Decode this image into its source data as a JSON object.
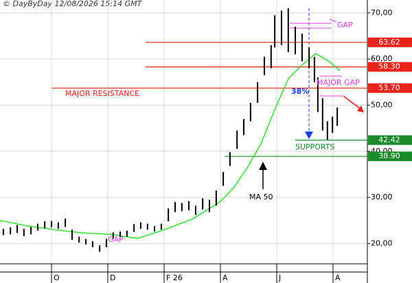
{
  "header": "© DayByDay 12/08/2026 15:14 GMT",
  "chart_data": {
    "type": "ohlc",
    "xlim": [
      -1.83,
      11.22
    ],
    "xticks": [
      {
        "value": 0,
        "label": "O"
      },
      {
        "value": 2,
        "label": "D"
      },
      {
        "value": 4,
        "label": "F 26"
      },
      {
        "value": 6,
        "label": "A"
      },
      {
        "value": 8,
        "label": "J"
      },
      {
        "value": 10,
        "label": "A"
      }
    ],
    "ylim": [
      15.6,
      72.8
    ],
    "yticks": [
      {
        "value": 20,
        "label": "20,00"
      },
      {
        "value": 30,
        "label": "30,00"
      },
      {
        "value": 40,
        "label": "40,00"
      },
      {
        "value": 50,
        "label": "50,00"
      },
      {
        "value": 60,
        "label": "60,00"
      },
      {
        "value": 70,
        "label": "70,00"
      }
    ],
    "grid": true,
    "color": "#000000",
    "x": [
      -1.71,
      -1.46,
      -1.22,
      -0.98,
      -0.73,
      -0.49,
      -0.24,
      0,
      0.24,
      0.49,
      0.73,
      0.98,
      1.22,
      1.46,
      1.71,
      1.95,
      2.19,
      2.44,
      2.68,
      2.93,
      3.17,
      3.41,
      3.66,
      3.9,
      4.15,
      4.39,
      4.63,
      4.88,
      5.12,
      5.37,
      5.61,
      5.85,
      6.1,
      6.34,
      6.59,
      6.83,
      7.07,
      7.32,
      7.56,
      7.8,
      7.93,
      8.17,
      8.41,
      8.66,
      8.9,
      9.15,
      9.34,
      9.46,
      9.63,
      9.8,
      9.98,
      10.15
    ],
    "high": [
      23.2,
      23.5,
      24,
      23.2,
      23.6,
      24.3,
      24.8,
      24.9,
      24.6,
      25.4,
      23,
      21.5,
      21,
      20.5,
      19.6,
      21,
      22.4,
      22.6,
      22.8,
      24.2,
      24.6,
      24.3,
      23.8,
      24.3,
      27.6,
      29,
      28.8,
      29.2,
      28.2,
      29.8,
      29.5,
      31.5,
      35.5,
      39.8,
      44.5,
      47,
      50.5,
      55,
      60.5,
      63,
      69.5,
      70.5,
      71,
      67,
      65.5,
      62.5,
      60.5,
      56,
      51.5,
      46.5,
      47.5,
      49.5
    ],
    "low": [
      21.8,
      22,
      22.3,
      21.6,
      22,
      22.8,
      23.3,
      23.5,
      23.2,
      23.6,
      20.8,
      20.2,
      19.8,
      19.2,
      18.2,
      19.2,
      21,
      21.3,
      21.5,
      22.5,
      23.2,
      23,
      22.6,
      23,
      24.8,
      26.8,
      27,
      27.2,
      26.2,
      27.4,
      26.8,
      28.2,
      32.5,
      36.8,
      40.5,
      43.5,
      46.5,
      50.5,
      56.5,
      58,
      62.5,
      63,
      61.5,
      61,
      59.5,
      58,
      55,
      48.5,
      44.5,
      42.5,
      44,
      45.5
    ],
    "ma": {
      "color": "#33dd33",
      "x": [
        -1.83,
        -0.85,
        0.12,
        1.1,
        2.07,
        3.05,
        4.02,
        5,
        5.98,
        6.46,
        6.95,
        7.44,
        7.93,
        8.41,
        8.9,
        9.39,
        9.88,
        10.24
      ],
      "values": [
        25,
        23.8,
        23,
        22.3,
        22,
        21.1,
        23,
        25.3,
        29,
        32,
        36.4,
        41.6,
        49,
        55.7,
        58.7,
        61.2,
        59.4,
        57.5
      ]
    },
    "levels": [
      {
        "value": 63.62,
        "label": "63.62",
        "from": 3.34,
        "color": "#e8231a"
      },
      {
        "value": 58.3,
        "label": "58.30",
        "from": 3.34,
        "color": "#e8231a"
      },
      {
        "value": 53.7,
        "label": "53.70",
        "from": 0,
        "color": "#e8231a"
      },
      {
        "value": 42.42,
        "label": "42.42",
        "from": 8.66,
        "color": "#1a8a2a"
      },
      {
        "value": 38.9,
        "label": "38.90",
        "from": 6.15,
        "color": "#1a8a2a"
      }
    ],
    "annotations": [
      "MAJOR RESISTANCE",
      "GAP",
      "MAJOR GAP",
      "GAP",
      "38%",
      "SUPPORTS",
      "MA 50"
    ]
  }
}
